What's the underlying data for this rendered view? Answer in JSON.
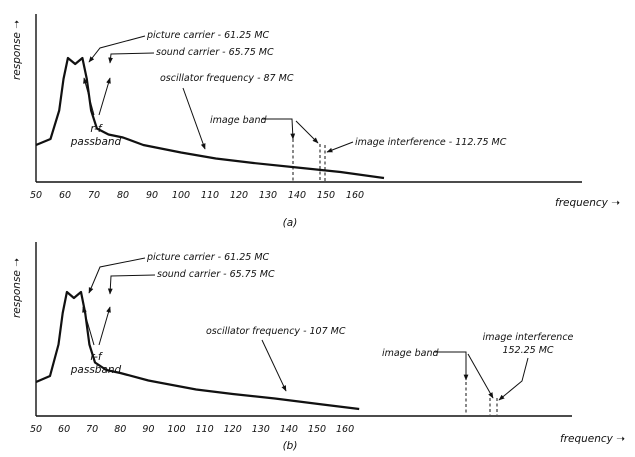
{
  "chart_data": [
    {
      "type": "line",
      "panel_label": "(a)",
      "xlabel": "frequency",
      "ylabel": "response",
      "xlim": [
        50,
        170
      ],
      "x_ticks": [
        "50",
        "60",
        "70",
        "80",
        "90",
        "100",
        "110",
        "120",
        "130",
        "140",
        "150",
        "160"
      ],
      "grid": false,
      "series": [
        {
          "x": [
            50,
            55,
            58,
            59.5,
            61,
            63.5,
            66,
            67.5,
            69,
            71,
            75,
            80,
            87,
            100,
            112,
            125,
            140,
            155,
            170
          ],
          "y": [
            0.22,
            0.26,
            0.45,
            0.66,
            0.8,
            0.76,
            0.8,
            0.66,
            0.45,
            0.33,
            0.29,
            0.27,
            0.22,
            0.17,
            0.13,
            0.1,
            0.07,
            0.04,
            0.0
          ]
        }
      ],
      "annotations": [
        {
          "text": "picture carrier - 61.25 MC",
          "x": 61.25
        },
        {
          "text": "sound carrier - 65.75 MC",
          "x": 65.75
        },
        {
          "text": "r-f",
          "x": 64
        },
        {
          "text": "passband",
          "x": 64
        },
        {
          "text": "oscillator frequency - 87 MC",
          "x": 87
        },
        {
          "text": "image band",
          "x": 110
        },
        {
          "text": "image interference - 112.75 MC",
          "x": 112.75
        }
      ]
    },
    {
      "type": "line",
      "panel_label": "(b)",
      "xlabel": "frequency",
      "ylabel": "response",
      "xlim": [
        50,
        170
      ],
      "x_ticks": [
        "50",
        "60",
        "70",
        "80",
        "90",
        "100",
        "110",
        "120",
        "130",
        "140",
        "150",
        "160"
      ],
      "grid": false,
      "series": [
        {
          "x": [
            50,
            55,
            58,
            59.5,
            61,
            63.5,
            66,
            67.5,
            69,
            71,
            75,
            80,
            90,
            107,
            120,
            135,
            152,
            165
          ],
          "y": [
            0.2,
            0.24,
            0.45,
            0.66,
            0.8,
            0.76,
            0.8,
            0.66,
            0.45,
            0.33,
            0.28,
            0.26,
            0.21,
            0.15,
            0.12,
            0.09,
            0.05,
            0.02
          ]
        }
      ],
      "annotations": [
        {
          "text": "picture carrier - 61.25 MC",
          "x": 61.25
        },
        {
          "text": "sound carrier - 65.75 MC",
          "x": 65.75
        },
        {
          "text": "r-f",
          "x": 64
        },
        {
          "text": "passband",
          "x": 64
        },
        {
          "text": "oscillator frequency - 107 MC",
          "x": 107
        },
        {
          "text": "image band",
          "x": 148
        },
        {
          "text": "image interference",
          "x": 152.25
        },
        {
          "text": "152.25 MC",
          "x": 152.25
        }
      ]
    }
  ]
}
